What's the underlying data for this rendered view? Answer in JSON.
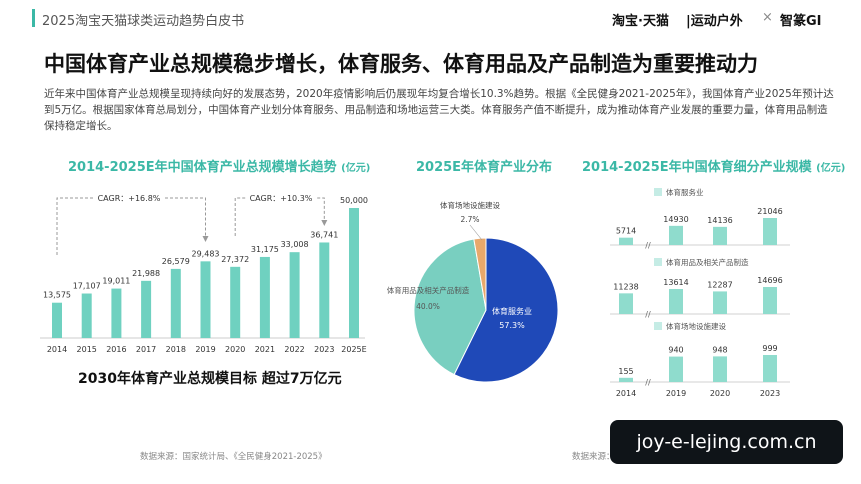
{
  "header": {
    "report_title": "2025淘宝天猫球类运动趋势白皮书",
    "brand_1": "淘宝·天猫",
    "brand_2": "|运动户外",
    "brand_sep": "×",
    "brand_3": "智篆GI"
  },
  "main_title": "中国体育产业总规模稳步增长，体育服务、体育用品及产品制造为重要推动力",
  "intro_text": "近年来中国体育产业总规模呈现持续向好的发展态势，2020年疫情影响后仍展现年均复合增长10.3%趋势。根据《全民健身2021-2025年》，我国体育产业2025年预计达到5万亿。根据国家体育总局划分，中国体育产业划分体育服务、用品制造和场地运营三大类。体育服务产值不断提升，成为推动体育产业发展的重要力量，体育用品制造保持稳定增长。",
  "chart_data": [
    {
      "type": "bar",
      "title": "2014-2025E年中国体育产业总规模增长趋势",
      "unit": "(亿元)",
      "categories": [
        "2014",
        "2015",
        "2016",
        "2017",
        "2018",
        "2019",
        "2020",
        "2021",
        "2022",
        "2023",
        "2025E"
      ],
      "value_labels": [
        "13,575",
        "17,107",
        "19,011",
        "21,988",
        "26,579",
        "29,483",
        "27,372",
        "31,175",
        "33,008",
        "36,741",
        "50,000"
      ],
      "values": [
        13575,
        17107,
        19011,
        21988,
        26579,
        29483,
        27372,
        31175,
        33008,
        36741,
        50000
      ],
      "annotations": [
        "CAGR：+16.8%",
        "CAGR：+10.3%"
      ],
      "colors": {
        "bar": "#6fd1c0",
        "axis": "#cccccc",
        "cagr": "#999999"
      }
    },
    {
      "type": "pie",
      "title": "2025E年体育产业分布",
      "slices": [
        {
          "label": "体育服务业",
          "value_label": "57.3%",
          "value": 57.3,
          "color": "#1f49b8"
        },
        {
          "label": "体育用品及相关产品制造",
          "value_label": "40.0%",
          "value": 40.0,
          "color": "#79cfc0"
        },
        {
          "label": "体育场地设施建设",
          "value_label": "2.7%",
          "value": 2.7,
          "color": "#e8a86b"
        }
      ]
    },
    {
      "type": "bar",
      "title": "2014-2025E年中国体育细分产业规模",
      "unit": "(亿元)",
      "categories": [
        "2014",
        "2019",
        "2020",
        "2023"
      ],
      "series": [
        {
          "name": "体育服务业",
          "values": [
            5714,
            14930,
            14136,
            21046
          ],
          "value_labels": [
            "5714",
            "14930",
            "14136",
            "21046"
          ]
        },
        {
          "name": "体育用品及相关产品制造",
          "values": [
            11238,
            13614,
            12287,
            14696
          ],
          "value_labels": [
            "11238",
            "13614",
            "12287",
            "14696"
          ]
        },
        {
          "name": "体育场地设施建设",
          "values": [
            155,
            940,
            948,
            999
          ],
          "value_labels": [
            "155",
            "940",
            "948",
            "999"
          ]
        }
      ],
      "colors": {
        "bar": "#8fdccd",
        "legend": "#c5ece5"
      }
    }
  ],
  "target_text": "2030年体育产业总规模目标 超过7万亿元",
  "source_left": "数据来源：国家统计局、《全民健身2021-2025》",
  "source_right": "数据来源：",
  "watermark": "joy-e-lejing.com.cn"
}
